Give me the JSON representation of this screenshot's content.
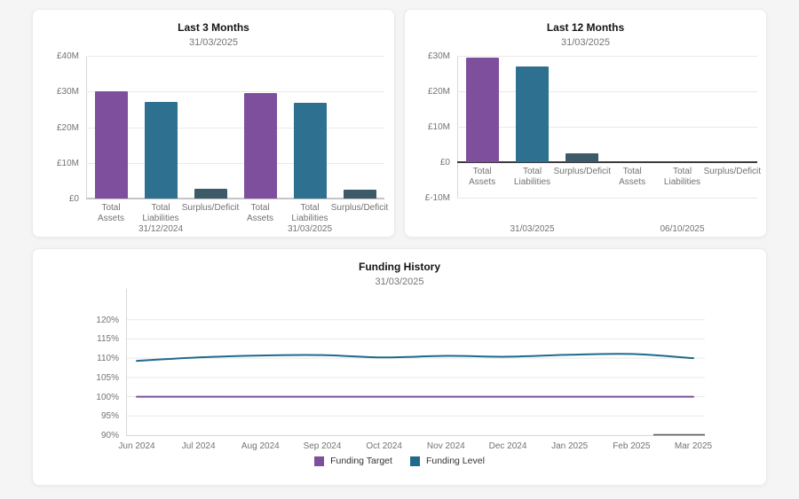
{
  "page_background": "#f5f5f5",
  "colors": {
    "bar_purple": "#7e4f9d",
    "bar_teal": "#2e7090",
    "bar_slate": "#3d5a68",
    "line_target_purple": "#7e4f9d",
    "line_level_teal": "#1e6b8c",
    "gridline": "#e9e9e9",
    "axis_light": "#d8d8d8",
    "baseline_medium": "#c6c6c6",
    "zero_line_dark": "#3a3a3a",
    "text_title": "#141414",
    "text_muted": "#757575"
  },
  "chart_data": [
    {
      "id": "last3",
      "type": "bar",
      "title": "Last 3 Months",
      "subtitle": "31/03/2025",
      "ylabel_ticks": [
        "£40M",
        "£30M",
        "£20M",
        "£10M",
        "£0"
      ],
      "ylim": [
        0,
        40
      ],
      "grid": true,
      "categories": [
        "Total Assets",
        "Total Liabilities",
        "Surplus/Deficit"
      ],
      "series_colors": [
        "#7e4f9d",
        "#2e7090",
        "#3d5a68"
      ],
      "groups": [
        {
          "label": "31/12/2024",
          "values": [
            30.0,
            27.2,
            2.8
          ]
        },
        {
          "label": "31/03/2025",
          "values": [
            29.5,
            26.8,
            2.6
          ]
        }
      ]
    },
    {
      "id": "last12",
      "type": "bar",
      "title": "Last 12 Months",
      "subtitle": "31/03/2025",
      "ylabel_ticks": [
        "£30M",
        "£20M",
        "£10M",
        "£0",
        "£-10M"
      ],
      "ylim": [
        -10,
        30
      ],
      "grid": true,
      "categories": [
        "Total Assets",
        "Total Liabilities",
        "Surplus/Deficit"
      ],
      "series_colors": [
        "#7e4f9d",
        "#2e7090",
        "#3d5a68"
      ],
      "groups": [
        {
          "label": "31/03/2025",
          "values": [
            29.6,
            26.9,
            2.5
          ]
        },
        {
          "label": "06/10/2025",
          "values": [
            0,
            0,
            0
          ]
        }
      ]
    },
    {
      "id": "funding",
      "type": "line",
      "title": "Funding History",
      "subtitle": "31/03/2025",
      "x": [
        "Jun 2024",
        "Jul 2024",
        "Aug 2024",
        "Sep 2024",
        "Oct 2024",
        "Nov 2024",
        "Dec 2024",
        "Jan 2025",
        "Feb 2025",
        "Mar 2025"
      ],
      "ylim": [
        90,
        128
      ],
      "yticks": [
        120,
        115,
        110,
        105,
        100,
        95,
        90
      ],
      "ytick_labels": [
        "120%",
        "115%",
        "110%",
        "105%",
        "100%",
        "95%",
        "90%"
      ],
      "grid": true,
      "legend_position": "bottom",
      "series": [
        {
          "name": "Funding Target",
          "color": "#7e4f9d",
          "values": [
            100,
            100,
            100,
            100,
            100,
            100,
            100,
            100,
            100,
            100
          ]
        },
        {
          "name": "Funding Level",
          "color": "#1e6b8c",
          "values": [
            109.3,
            110.2,
            110.7,
            110.8,
            110.2,
            110.6,
            110.4,
            110.9,
            111.1,
            110.0
          ]
        }
      ]
    }
  ]
}
